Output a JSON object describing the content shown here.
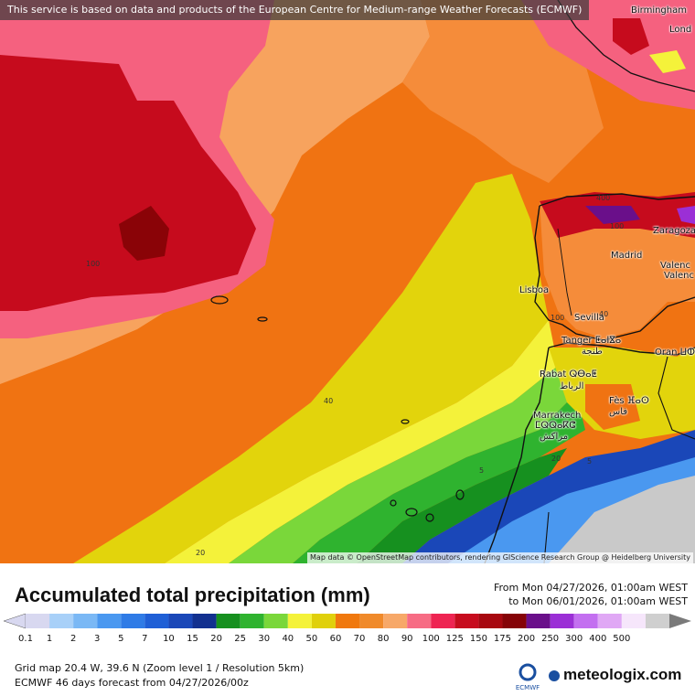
{
  "header": {
    "notice": "This service is based on data and products of the European Centre for Medium-range Weather Forecasts (ECMWF)"
  },
  "map": {
    "attribution": "Map data © OpenStreetMap contributors, rendering GIScience Research Group @ Heidelberg University",
    "cities": [
      {
        "name": "Birmingham"
      },
      {
        "name": "Lond"
      },
      {
        "name": "Zaragoza"
      },
      {
        "name": "Madrid"
      },
      {
        "name": "Valenc"
      },
      {
        "name": "Valenc"
      },
      {
        "name": "Lisboa"
      },
      {
        "name": "Sevilla"
      },
      {
        "name": "Tanger ⵟⴰⵏⴵⴰ"
      },
      {
        "name": "طنجة"
      },
      {
        "name": "Oran ⵡⵀⵔⴰⵏ"
      },
      {
        "name": "Rabat ⵕⴱⴰⵟ"
      },
      {
        "name": "الرباط"
      },
      {
        "name": "Fès ⴼⴰⵙ"
      },
      {
        "name": "فاس"
      },
      {
        "name": "Marrakech"
      },
      {
        "name": "ⵎⵕⵕⴰⴽⵛ"
      },
      {
        "name": "مراكش"
      }
    ],
    "isolines": [
      "100",
      "40",
      "20",
      "5",
      "100",
      "400",
      "100",
      "40",
      "20",
      "5"
    ]
  },
  "footer": {
    "title": "Accumulated total precipitation (mm)",
    "period_from": "From Mon 04/27/2026, 01:00am WEST",
    "period_to": "to Mon 06/01/2026, 01:00am WEST",
    "grid_info": "Grid map 20.4 W, 39.6 N (Zoom level 1 / Resolution 5km)",
    "forecast_info": "ECMWF 46 days forecast from  04/27/2026/00z",
    "brand": "meteologix.com",
    "ecmwf_label": "ECMWF"
  },
  "legend": {
    "ticks": [
      "0.1",
      "1",
      "2",
      "3",
      "5",
      "7",
      "10",
      "15",
      "20",
      "25",
      "30",
      "40",
      "50",
      "60",
      "70",
      "80",
      "90",
      "100",
      "125",
      "150",
      "175",
      "200",
      "250",
      "300",
      "400",
      "500"
    ],
    "colors": [
      "#d8d8f0",
      "#a8d0f8",
      "#7ab8f5",
      "#4a98f0",
      "#2f7be6",
      "#1f5fd6",
      "#1a47b8",
      "#12308f",
      "#16901f",
      "#2fb32f",
      "#7ad73a",
      "#f4f23a",
      "#e0d00b",
      "#f0780d",
      "#f08a2a",
      "#f7a868",
      "#f76c84",
      "#ee2452",
      "#c70c1e",
      "#a70810",
      "#850307",
      "#6a0f8a",
      "#9b2fd6",
      "#c36ff0",
      "#e0a8f5",
      "#f6e6fb",
      "#cfcfcf"
    ],
    "colors_meaning": "color band for each legend bin"
  }
}
